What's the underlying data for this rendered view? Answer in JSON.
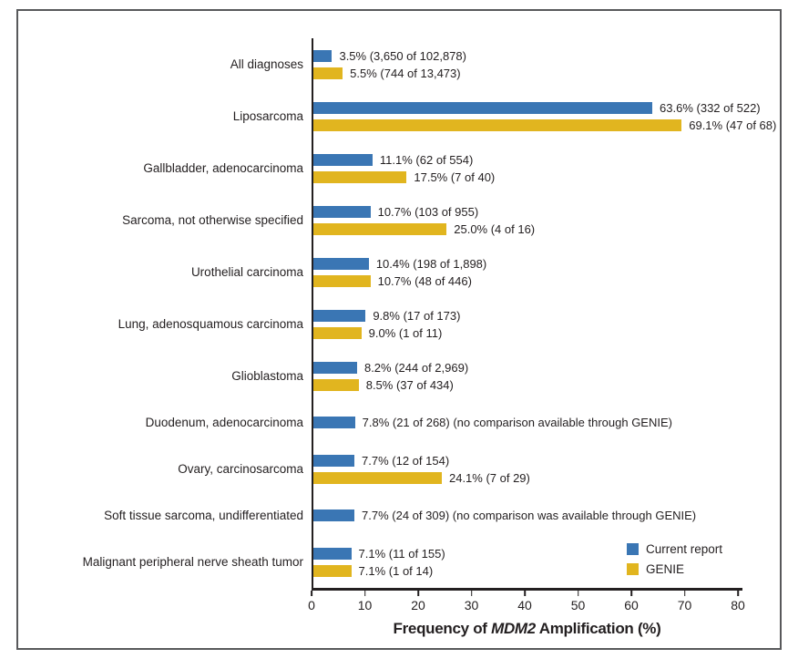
{
  "figure": {
    "background": "#ffffff",
    "frame_border_color": "#58595b",
    "axis_color": "#231f20",
    "text_color": "#231f20"
  },
  "chart_data": {
    "type": "bar",
    "orientation": "horizontal",
    "title": "",
    "xlabel_prefix": "Frequency of ",
    "xlabel_italic": "MDM2",
    "xlabel_suffix": " Amplification (%)",
    "xlim": [
      0,
      80
    ],
    "xticks": [
      0,
      10,
      20,
      30,
      40,
      50,
      60,
      70,
      80
    ],
    "grid": false,
    "legend_position": "inside-bottom-right",
    "legend": [
      {
        "name": "Current report",
        "color": "#3a76b4"
      },
      {
        "name": "GENIE",
        "color": "#e1b51f"
      }
    ],
    "categories": [
      {
        "label": "All diagnoses",
        "bars": [
          {
            "series": "Current report",
            "value": 3.5,
            "annotation": "3.5% (3,650 of 102,878)"
          },
          {
            "series": "GENIE",
            "value": 5.5,
            "annotation": "5.5% (744 of 13,473)"
          }
        ]
      },
      {
        "label": "Liposarcoma",
        "bars": [
          {
            "series": "Current report",
            "value": 63.6,
            "annotation": "63.6% (332 of 522)"
          },
          {
            "series": "GENIE",
            "value": 69.1,
            "annotation": "69.1% (47 of 68)"
          }
        ]
      },
      {
        "label": "Gallbladder, adenocarcinoma",
        "bars": [
          {
            "series": "Current report",
            "value": 11.1,
            "annotation": "11.1% (62 of 554)"
          },
          {
            "series": "GENIE",
            "value": 17.5,
            "annotation": "17.5% (7 of 40)"
          }
        ]
      },
      {
        "label": "Sarcoma, not otherwise specified",
        "bars": [
          {
            "series": "Current report",
            "value": 10.7,
            "annotation": "10.7% (103 of 955)"
          },
          {
            "series": "GENIE",
            "value": 25.0,
            "annotation": "25.0% (4 of 16)"
          }
        ]
      },
      {
        "label": "Urothelial carcinoma",
        "bars": [
          {
            "series": "Current report",
            "value": 10.4,
            "annotation": "10.4% (198 of 1,898)"
          },
          {
            "series": "GENIE",
            "value": 10.7,
            "annotation": "10.7% (48 of 446)"
          }
        ]
      },
      {
        "label": "Lung, adenosquamous carcinoma",
        "bars": [
          {
            "series": "Current report",
            "value": 9.8,
            "annotation": "9.8% (17 of 173)"
          },
          {
            "series": "GENIE",
            "value": 9.0,
            "annotation": "9.0% (1 of 11)"
          }
        ]
      },
      {
        "label": "Glioblastoma",
        "bars": [
          {
            "series": "Current report",
            "value": 8.2,
            "annotation": "8.2% (244 of 2,969)"
          },
          {
            "series": "GENIE",
            "value": 8.5,
            "annotation": "8.5% (37 of 434)"
          }
        ]
      },
      {
        "label": "Duodenum, adenocarcinoma",
        "bars": [
          {
            "series": "Current report",
            "value": 7.8,
            "annotation": "7.8% (21 of 268) (no comparison available through GENIE)"
          }
        ]
      },
      {
        "label": "Ovary, carcinosarcoma",
        "bars": [
          {
            "series": "Current report",
            "value": 7.7,
            "annotation": "7.7% (12 of 154)"
          },
          {
            "series": "GENIE",
            "value": 24.1,
            "annotation": "24.1% (7 of 29)"
          }
        ]
      },
      {
        "label": "Soft tissue sarcoma, undifferentiated",
        "bars": [
          {
            "series": "Current report",
            "value": 7.7,
            "annotation": "7.7% (24 of 309) (no comparison was available through GENIE)"
          }
        ]
      },
      {
        "label": "Malignant peripheral nerve sheath tumor",
        "bars": [
          {
            "series": "Current report",
            "value": 7.1,
            "annotation": "7.1% (11 of 155)"
          },
          {
            "series": "GENIE",
            "value": 7.1,
            "annotation": "7.1% (1 of 14)"
          }
        ]
      }
    ]
  }
}
